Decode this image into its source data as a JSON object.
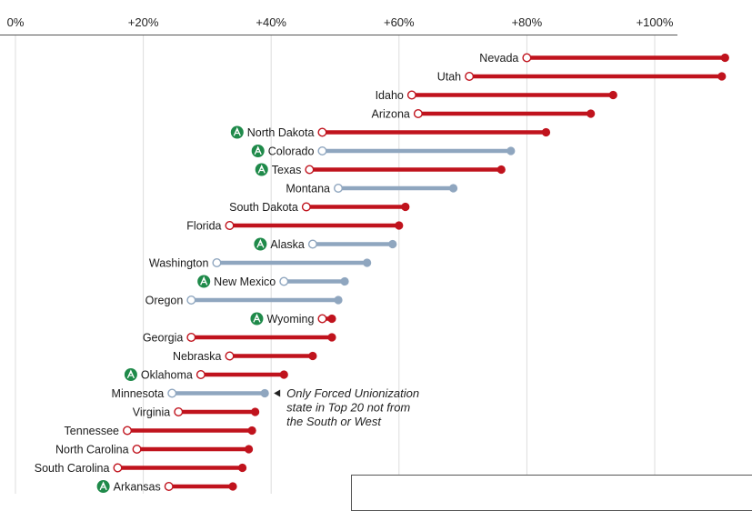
{
  "colors": {
    "red": "#c0131d",
    "blue": "#8fa6bf",
    "green": "#1f8a4a",
    "grid": "#dddddd",
    "axis": "#555555"
  },
  "badge_icon": "oil-derrick-icon",
  "chart_data": {
    "type": "dumbbell",
    "xlim": [
      -8,
      115
    ],
    "x_ticks": [
      {
        "value": 0,
        "label": "0%"
      },
      {
        "value": 20,
        "label": "+20%"
      },
      {
        "value": 40,
        "label": "+40%"
      },
      {
        "value": 60,
        "label": "+60%"
      },
      {
        "value": 80,
        "label": "+80%"
      },
      {
        "value": 100,
        "label": "+100%"
      }
    ],
    "grid": true,
    "states": [
      {
        "name": "Nevada",
        "start": 80,
        "end": 111,
        "group": "red",
        "badge": false
      },
      {
        "name": "Utah",
        "start": 71,
        "end": 110.5,
        "group": "red",
        "badge": false
      },
      {
        "name": "Idaho",
        "start": 62,
        "end": 93.5,
        "group": "red",
        "badge": false
      },
      {
        "name": "Arizona",
        "start": 63,
        "end": 90,
        "group": "red",
        "badge": false
      },
      {
        "name": "North Dakota",
        "start": 48,
        "end": 83,
        "group": "red",
        "badge": true
      },
      {
        "name": "Colorado",
        "start": 48,
        "end": 77.5,
        "group": "blue",
        "badge": true
      },
      {
        "name": "Texas",
        "start": 46,
        "end": 76,
        "group": "red",
        "badge": true
      },
      {
        "name": "Montana",
        "start": 50.5,
        "end": 68.5,
        "group": "blue",
        "badge": false
      },
      {
        "name": "South Dakota",
        "start": 45.5,
        "end": 61,
        "group": "red",
        "badge": false
      },
      {
        "name": "Florida",
        "start": 33.5,
        "end": 60,
        "group": "red",
        "badge": false
      },
      {
        "name": "Alaska",
        "start": 46.5,
        "end": 59,
        "group": "blue",
        "badge": true
      },
      {
        "name": "Washington",
        "start": 31.5,
        "end": 55,
        "group": "blue",
        "badge": false
      },
      {
        "name": "New Mexico",
        "start": 42,
        "end": 51.5,
        "group": "blue",
        "badge": true
      },
      {
        "name": "Oregon",
        "start": 27.5,
        "end": 50.5,
        "group": "blue",
        "badge": false
      },
      {
        "name": "Wyoming",
        "start": 48,
        "end": 49.5,
        "group": "red",
        "badge": true
      },
      {
        "name": "Georgia",
        "start": 27.5,
        "end": 49.5,
        "group": "red",
        "badge": false
      },
      {
        "name": "Nebraska",
        "start": 33.5,
        "end": 46.5,
        "group": "red",
        "badge": false
      },
      {
        "name": "Oklahoma",
        "start": 29,
        "end": 42,
        "group": "red",
        "badge": true
      },
      {
        "name": "Minnesota",
        "start": 24.5,
        "end": 39,
        "group": "blue",
        "badge": false
      },
      {
        "name": "Virginia",
        "start": 25.5,
        "end": 37.5,
        "group": "red",
        "badge": false
      },
      {
        "name": "Tennessee",
        "start": 17.5,
        "end": 37,
        "group": "red",
        "badge": false
      },
      {
        "name": "North Carolina",
        "start": 19,
        "end": 36.5,
        "group": "red",
        "badge": false
      },
      {
        "name": "South Carolina",
        "start": 16,
        "end": 35.5,
        "group": "red",
        "badge": false
      },
      {
        "name": "Arkansas",
        "start": 24,
        "end": 34,
        "group": "red",
        "badge": true
      }
    ],
    "annotation": {
      "target": "Minnesota",
      "lines": [
        "Only Forced Unionization",
        "state in Top 20 not from",
        "the South or West"
      ]
    }
  }
}
